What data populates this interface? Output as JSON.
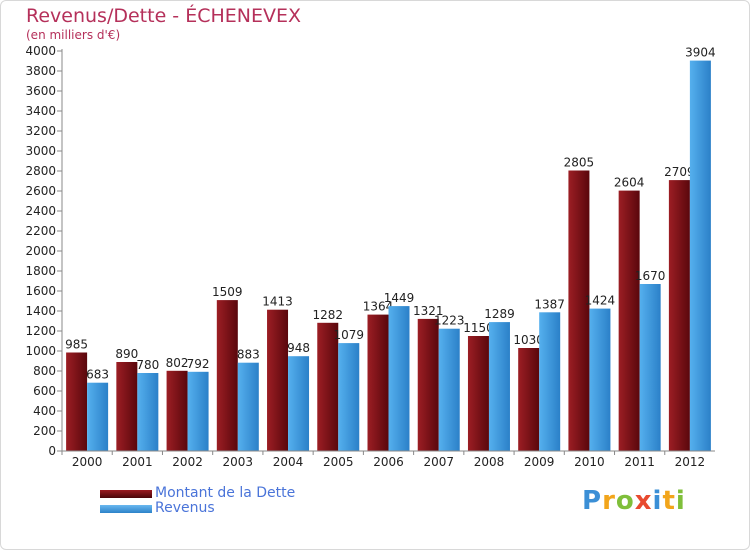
{
  "chart_data": {
    "type": "bar",
    "title": "Revenus/Dette - ÉCHENEVEX",
    "subtitle": "(en milliers d'€)",
    "categories": [
      "2000",
      "2001",
      "2002",
      "2003",
      "2004",
      "2005",
      "2006",
      "2007",
      "2008",
      "2009",
      "2010",
      "2011",
      "2012"
    ],
    "series": [
      {
        "name": "Montant de la Dette",
        "color": "#6e0d12",
        "values": [
          985,
          890,
          802,
          1509,
          1413,
          1282,
          1364,
          1321,
          1150,
          1030,
          2805,
          2604,
          2709
        ]
      },
      {
        "name": "Revenus",
        "color": "#3f9be0",
        "values": [
          683,
          780,
          792,
          883,
          948,
          1079,
          1449,
          1223,
          1289,
          1387,
          1424,
          1670,
          3904
        ]
      }
    ],
    "ylim": [
      0,
      4000
    ],
    "ytick_step": 200,
    "grid": false,
    "legend_position": "bottom-left"
  },
  "logo": {
    "text": "Proxiti"
  }
}
